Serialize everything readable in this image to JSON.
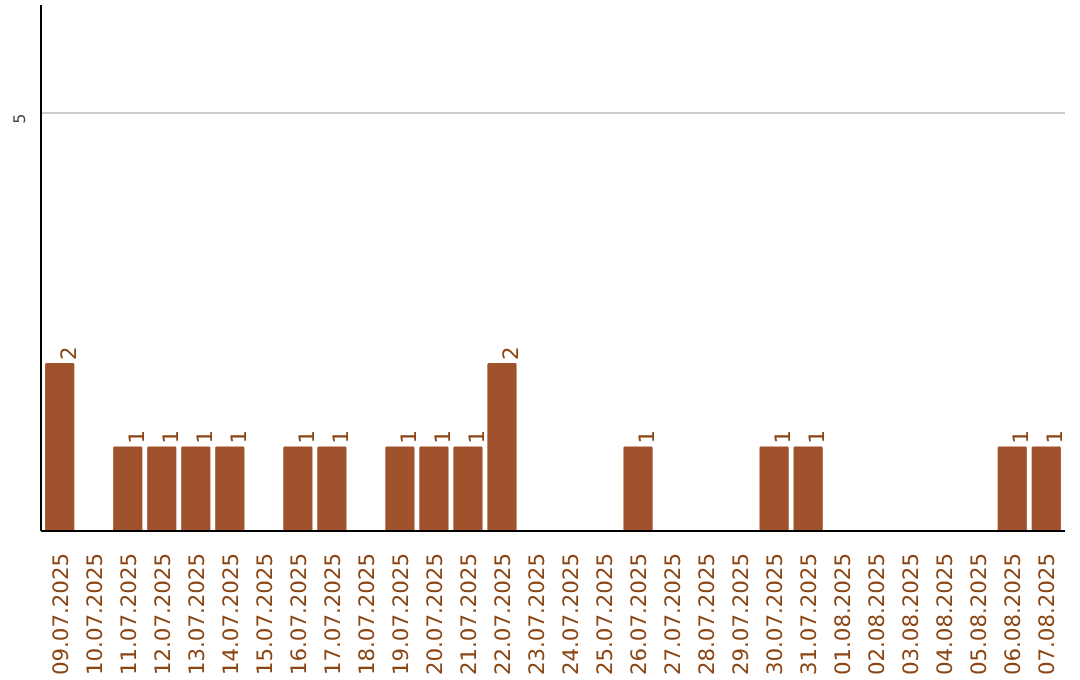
{
  "chart_data": {
    "type": "bar",
    "categories": [
      "09.07.2025",
      "10.07.2025",
      "11.07.2025",
      "12.07.2025",
      "13.07.2025",
      "14.07.2025",
      "15.07.2025",
      "16.07.2025",
      "17.07.2025",
      "18.07.2025",
      "19.07.2025",
      "20.07.2025",
      "21.07.2025",
      "22.07.2025",
      "23.07.2025",
      "24.07.2025",
      "25.07.2025",
      "26.07.2025",
      "27.07.2025",
      "28.07.2025",
      "29.07.2025",
      "30.07.2025",
      "31.07.2025",
      "01.08.2025",
      "02.08.2025",
      "03.08.2025",
      "04.08.2025",
      "05.08.2025",
      "06.08.2025",
      "07.08.2025"
    ],
    "values": [
      2,
      0,
      1,
      1,
      1,
      1,
      0,
      1,
      1,
      0,
      1,
      1,
      1,
      2,
      0,
      0,
      0,
      1,
      0,
      0,
      0,
      1,
      1,
      0,
      0,
      0,
      0,
      0,
      1,
      1
    ],
    "value_labels": [
      "2",
      null,
      "1",
      "1",
      "1",
      "1",
      null,
      "1",
      "1",
      null,
      "1",
      "1",
      "1",
      "2",
      null,
      null,
      null,
      "1",
      null,
      null,
      null,
      "1",
      "1",
      null,
      null,
      null,
      null,
      null,
      "1",
      "1"
    ],
    "color": "#a0522d",
    "ylim": [
      0,
      6.3
    ],
    "yticks": [
      5
    ],
    "grid": "y"
  }
}
